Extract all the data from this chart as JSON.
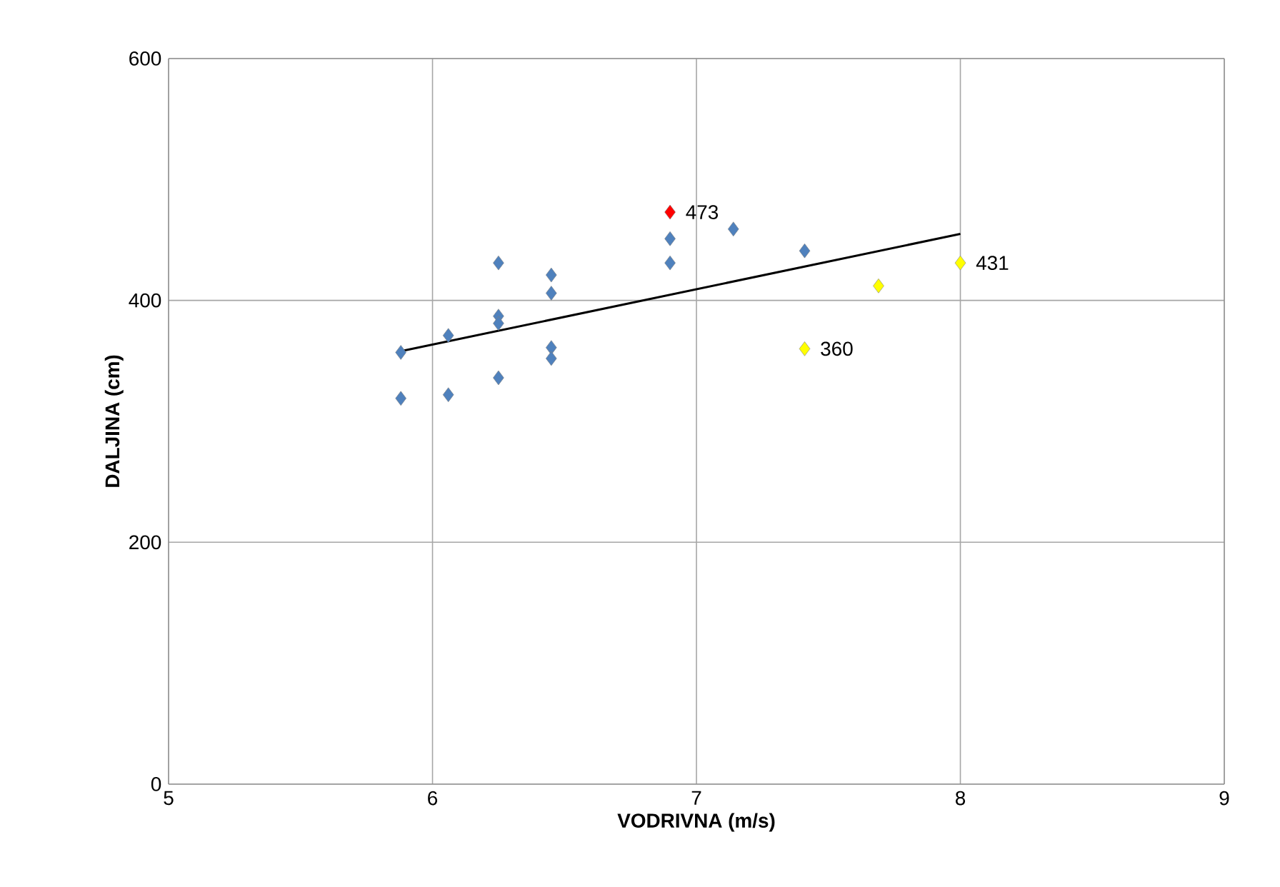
{
  "chart_data": {
    "type": "scatter",
    "xlabel": "VODRIVNA (m/s)",
    "ylabel": "DALJINA (cm)",
    "xlim": [
      5,
      9
    ],
    "xticks": [
      5,
      6,
      7,
      8,
      9
    ],
    "ylim": [
      0,
      600
    ],
    "yticks": [
      0,
      200,
      400,
      600
    ],
    "grid": true,
    "marker": "diamond",
    "series": [
      {
        "color": "#4f81bd",
        "x": [
          5.88,
          5.88,
          6.06,
          6.06,
          6.25,
          6.25,
          6.25,
          6.25,
          6.45,
          6.45,
          6.45,
          6.45,
          6.9,
          6.9,
          7.14,
          7.41
        ],
        "values": [
          357,
          319,
          371,
          322,
          431,
          387,
          381,
          336,
          421,
          406,
          361,
          352,
          451,
          431,
          459,
          441
        ]
      },
      {
        "color": "#ff0000",
        "x": [
          6.9
        ],
        "values": [
          473
        ],
        "value_labels": [
          "473"
        ]
      },
      {
        "color": "#ffff00",
        "x": [
          7.41,
          7.69,
          8.0
        ],
        "values": [
          360,
          412,
          431
        ],
        "value_labels": [
          "360",
          null,
          "431"
        ]
      },
      {
        "type": "line",
        "marker": "none",
        "color": "#000000",
        "x": [
          5.88,
          8.0
        ],
        "values": [
          358,
          455
        ]
      }
    ]
  }
}
